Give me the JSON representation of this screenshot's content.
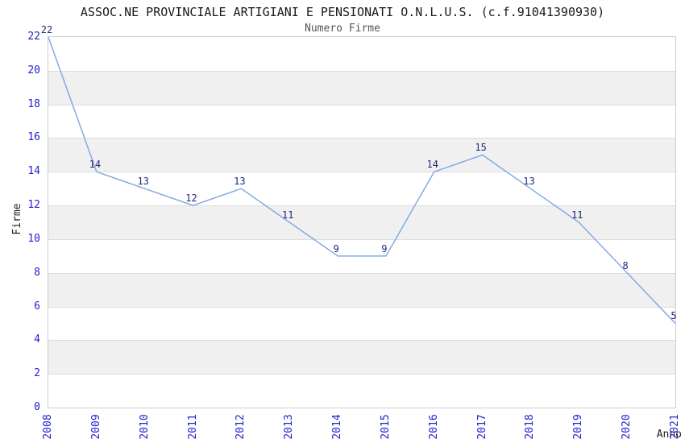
{
  "header": {
    "title": "ASSOC.NE PROVINCIALE ARTIGIANI E PENSIONATI O.N.L.U.S. (c.f.91041390930)",
    "subtitle": "Numero Firme"
  },
  "chart_data": {
    "type": "line",
    "title": "ASSOC.NE PROVINCIALE ARTIGIANI E PENSIONATI O.N.L.U.S. (c.f.91041390930)",
    "subtitle": "Numero Firme",
    "xlabel": "Anno",
    "ylabel": "Firme",
    "x": [
      "2008",
      "2009",
      "2010",
      "2011",
      "2012",
      "2013",
      "2014",
      "2015",
      "2016",
      "2017",
      "2018",
      "2019",
      "2020",
      "2021"
    ],
    "values": [
      22,
      14,
      13,
      12,
      13,
      11,
      9,
      9,
      14,
      15,
      13,
      11,
      8,
      5
    ],
    "data_labels_visible": true,
    "ylim": [
      0,
      22
    ],
    "ytick_step": 2,
    "yticks": [
      0,
      2,
      4,
      6,
      8,
      10,
      12,
      14,
      16,
      18,
      20,
      22
    ],
    "grid": "horizontal-bands",
    "legend": "none",
    "style": {
      "background": "#ffffff",
      "title_color": "#1a1a1a",
      "subtitle_color": "#555555",
      "tick_color": "#2222cc",
      "data_label_color": "#26267b",
      "line_color": "#82abe3",
      "band_color": "#f0f0f0",
      "grid_color": "#dcdcdc",
      "border_color": "#cccccc",
      "axis_title_color": "#222222"
    }
  }
}
